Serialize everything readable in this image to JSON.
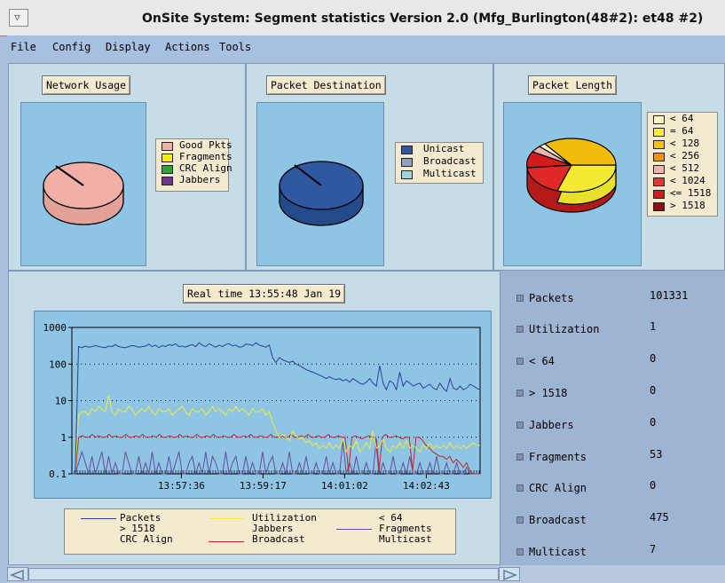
{
  "window": {
    "title": "OnSite System: Segment statistics Version 2.0  (Mfg_Burlington(48#2): et48 #2)"
  },
  "menu": [
    "File",
    "Config",
    "Display",
    "Actions",
    "Tools"
  ],
  "panels": {
    "network_usage": {
      "button": "Network Usage",
      "legend": [
        {
          "label": "Good Pkts",
          "color": "#f0b0a8"
        },
        {
          "label": "Fragments",
          "color": "#f5f000"
        },
        {
          "label": "CRC Align",
          "color": "#2fa33a"
        },
        {
          "label": "Jabbers",
          "color": "#6a3a8a"
        }
      ]
    },
    "packet_destination": {
      "button": "Packet Destination",
      "legend": [
        {
          "label": "Unicast",
          "color": "#2f58a0"
        },
        {
          "label": "Broadcast",
          "color": "#8fa2c6"
        },
        {
          "label": "Multicast",
          "color": "#9fd5dd"
        }
      ]
    },
    "packet_length": {
      "button": "Packet Length",
      "legend": [
        {
          "label": "< 64",
          "color": "#fdf6c3"
        },
        {
          "label": "= 64",
          "color": "#f8ee3a"
        },
        {
          "label": "< 128",
          "color": "#f5c400"
        },
        {
          "label": "< 256",
          "color": "#ef9400"
        },
        {
          "label": "< 512",
          "color": "#f1b3ad"
        },
        {
          "label": "< 1024",
          "color": "#e23a36"
        },
        {
          "label": "<= 1518",
          "color": "#d41b1b"
        },
        {
          "label": "> 1518",
          "color": "#8a1010"
        }
      ]
    }
  },
  "realtime": {
    "label": "Real time 13:55:48  Jan 19"
  },
  "chart_data": {
    "type": "line",
    "yscale": "log",
    "ylim": [
      0.1,
      1000
    ],
    "yticks": [
      "1000",
      "100",
      "10",
      "1",
      "0.1"
    ],
    "xticks": [
      "13:57:36",
      "13:59:17",
      "14:01:02",
      "14:02:43"
    ],
    "grid": "dotted horizontal",
    "series": [
      {
        "name": "Packets",
        "color": "#2b3f9c",
        "values": [
          0.1,
          0.1,
          300,
          280,
          310,
          290,
          300,
          320,
          300,
          290,
          280,
          310,
          300,
          340,
          300,
          290,
          280,
          300,
          320,
          310,
          290,
          300,
          310,
          350,
          300,
          330,
          280,
          320,
          300,
          340,
          320,
          360,
          300,
          310,
          290,
          320,
          340,
          300,
          380,
          330,
          300,
          360,
          320,
          290,
          330,
          300,
          340,
          360,
          310,
          330,
          290,
          300,
          350,
          340,
          320,
          380,
          330,
          310,
          290,
          330,
          150,
          110,
          150,
          130,
          120,
          110,
          120,
          100,
          90,
          80,
          70,
          65,
          60,
          55,
          50,
          45,
          40,
          45,
          40,
          38,
          40,
          35,
          38,
          32,
          40,
          35,
          30,
          28,
          32,
          40,
          30,
          25,
          90,
          30,
          20,
          35,
          30,
          20,
          60,
          25,
          35,
          30,
          25,
          28,
          30,
          22,
          25,
          28,
          22,
          20,
          30,
          22,
          18,
          40,
          22,
          20,
          25,
          20,
          22,
          28,
          25,
          22,
          20
        ]
      },
      {
        "name": "Utilization",
        "color": "#f0ec3a",
        "values": [
          0.1,
          0.1,
          4,
          5,
          5,
          4,
          6,
          5,
          7,
          6,
          5,
          14,
          5,
          4,
          6,
          5,
          5,
          7,
          6,
          4,
          5,
          6,
          5,
          7,
          5,
          4,
          6,
          5,
          5,
          6,
          4,
          5,
          6,
          7,
          5,
          4,
          6,
          5,
          5,
          6,
          4,
          5,
          7,
          5,
          6,
          5,
          4,
          6,
          5,
          7,
          5,
          6,
          5,
          4,
          6,
          5,
          5,
          6,
          4,
          5,
          2.5,
          1.5,
          1,
          1.2,
          1,
          0.8,
          1.5,
          1.1,
          0.9,
          1,
          0.7,
          0.8,
          0.6,
          0.7,
          0.5,
          0.6,
          0.5,
          0.7,
          0.5,
          0.6,
          0.5,
          0.9,
          0.4,
          0.6,
          0.5,
          0.8,
          0.4,
          0.5,
          0.7,
          0.5,
          1.5,
          0.5,
          0.6,
          0.9,
          0.5,
          0.4,
          0.6,
          0.5,
          0.7,
          0.5,
          0.8,
          0.5,
          0.6,
          0.5,
          0.4,
          0.6,
          0.5,
          0.7,
          0.5,
          0.6,
          0.5,
          0.6,
          0.5,
          0.7,
          0.5,
          0.6,
          0.5,
          0.6,
          0.5,
          0.6,
          0.7,
          0.6,
          0.6
        ]
      },
      {
        "name": "< 64",
        "color": "#5a4a9a",
        "values": []
      },
      {
        "name": "> 1518",
        "color": "#2b3f9c",
        "values": []
      },
      {
        "name": "Jabbers",
        "color": "#f0ec3a",
        "values": []
      },
      {
        "name": "Fragments",
        "color": "#6a4a9a",
        "values": [
          0.1,
          0.1,
          0.2,
          0.4,
          0.2,
          0.1,
          0.3,
          0.1,
          0.2,
          0.4,
          0.1,
          0.3,
          0.1,
          0.2,
          0.1,
          0.1,
          0.4,
          0.2,
          0.1,
          0.1,
          0.3,
          0.1,
          0.2,
          0.1,
          0.4,
          0.1,
          0.2,
          0.1,
          0.1,
          0.3,
          0.1,
          0.2,
          0.4,
          0.1,
          0.1,
          0.2,
          0.3,
          0.1,
          0.2,
          0.1,
          0.4,
          0.1,
          0.3,
          0.2,
          0.1,
          0.1,
          0.4,
          0.1,
          0.2,
          0.3,
          0.1,
          0.1,
          0.3,
          0.1,
          0.2,
          0.1,
          0.1,
          0.4,
          0.1,
          0.2,
          0.3,
          0.1,
          0.1,
          0.2,
          0.1,
          0.4,
          0.1,
          0.1,
          0.2,
          0.1,
          0.3,
          0.1,
          0.1,
          0.2,
          0.1,
          0.1,
          0.3,
          0.1,
          0.2,
          0.1,
          0.1,
          0.8,
          0.1,
          0.2,
          0.1,
          0.3,
          0.1,
          0.1,
          0.2,
          0.1,
          0.1,
          0.9,
          0.1,
          0.2,
          0.1,
          0.1,
          0.3,
          0.1,
          0.1,
          0.2,
          0.1,
          0.3,
          0.1,
          0.1,
          0.2,
          0.1,
          0.1,
          0.2,
          0.1,
          0.3,
          0.1,
          0.1,
          0.2,
          0.1,
          0.1,
          0.2,
          0.1,
          0.1,
          0.15,
          0.1,
          0.1,
          0.1,
          0.1
        ]
      },
      {
        "name": "CRC Align",
        "color": "#8a1010",
        "values": []
      },
      {
        "name": "Broadcast",
        "color": "#c2262b",
        "values": [
          0.1,
          0.1,
          1,
          1.1,
          1,
          1,
          1.2,
          1,
          1.1,
          1,
          1,
          1.2,
          1,
          1.1,
          1,
          1,
          1.2,
          1,
          1,
          1.1,
          1,
          1.2,
          1,
          1,
          1.1,
          1,
          1.2,
          1,
          1,
          1.1,
          1,
          1,
          1.2,
          1,
          1.1,
          1,
          1,
          1.2,
          1,
          1,
          1.1,
          1,
          1.2,
          1,
          1,
          1.1,
          1,
          1,
          1.2,
          1,
          1,
          1.1,
          1,
          1.2,
          1,
          1,
          1.1,
          1,
          1,
          1.2,
          1,
          1,
          1.1,
          1,
          1,
          1.2,
          1,
          1,
          1.1,
          1,
          1.2,
          1,
          1,
          1.1,
          1,
          1,
          1.2,
          1,
          1,
          1.1,
          1,
          1,
          0.12,
          1,
          1.1,
          1,
          0.9,
          1,
          1.1,
          1,
          1,
          0.11,
          1,
          1.2,
          1,
          1,
          1.1,
          1,
          0.9,
          1,
          1,
          0.12,
          1,
          1,
          0.8,
          0.6,
          0.5,
          0.4,
          0.35,
          0.3,
          0.3,
          0.25,
          0.3,
          0.2,
          0.25,
          0.2,
          0.15,
          0.2,
          0.12,
          0.1,
          0.1,
          0.1
        ]
      },
      {
        "name": "Multicast",
        "color": "#9fd5dd",
        "values": []
      }
    ]
  },
  "graph_legend": [
    [
      "Packets",
      "Utilization",
      "< 64"
    ],
    [
      "> 1518",
      "Jabbers",
      "Fragments"
    ],
    [
      "CRC Align",
      "Broadcast",
      "Multicast"
    ]
  ],
  "stats": [
    {
      "label": "Packets",
      "value": "101331"
    },
    {
      "label": "Utilization",
      "value": "1"
    },
    {
      "label": "< 64",
      "value": "0"
    },
    {
      "label": "> 1518",
      "value": "0"
    },
    {
      "label": "Jabbers",
      "value": "0"
    },
    {
      "label": "Fragments",
      "value": "53"
    },
    {
      "label": "CRC Align",
      "value": "0"
    },
    {
      "label": "Broadcast",
      "value": "475"
    },
    {
      "label": "Multicast",
      "value": "7"
    }
  ]
}
